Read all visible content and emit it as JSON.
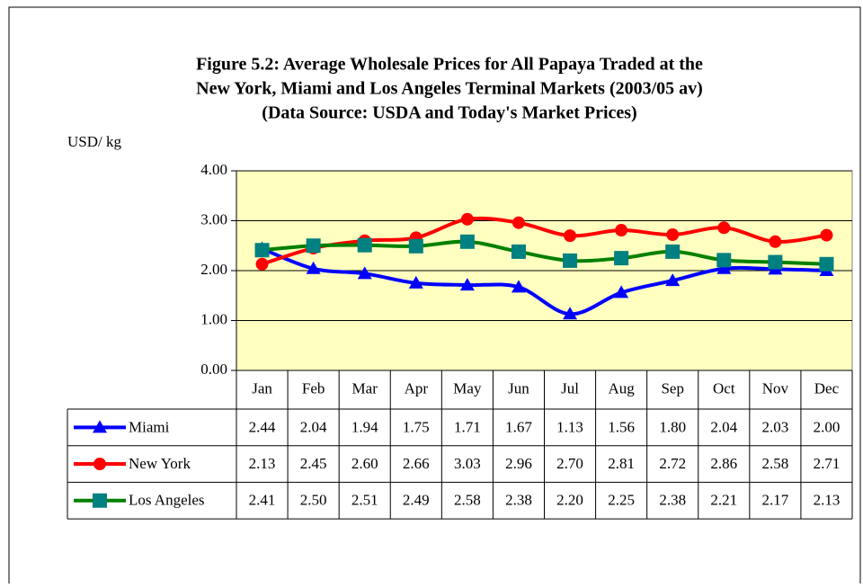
{
  "chart_data": {
    "type": "line",
    "title": [
      "Figure 5.2: Average Wholesale Prices for All Papaya Traded at the",
      "New York, Miami and Los Angeles Terminal Markets (2003/05 av)",
      "(Data Source: USDA and Today's Market Prices)"
    ],
    "y_label": "USD/ kg",
    "categories": [
      "Jan",
      "Feb",
      "Mar",
      "Apr",
      "May",
      "Jun",
      "Jul",
      "Aug",
      "Sep",
      "Oct",
      "Nov",
      "Dec"
    ],
    "series": [
      {
        "name": "Miami",
        "color": "#0000ff",
        "marker": "triangle",
        "values": [
          2.44,
          2.04,
          1.94,
          1.75,
          1.71,
          1.67,
          1.13,
          1.56,
          1.8,
          2.04,
          2.03,
          2.0
        ],
        "value_labels": [
          "2.44",
          "2.04",
          "1.94",
          "1.75",
          "1.71",
          "1.67",
          "1.13",
          "1.56",
          "1.80",
          "2.04",
          "2.03",
          "2.00"
        ]
      },
      {
        "name": "New York",
        "color": "#ff0000",
        "marker": "circle",
        "values": [
          2.13,
          2.45,
          2.6,
          2.66,
          3.03,
          2.96,
          2.7,
          2.81,
          2.72,
          2.86,
          2.58,
          2.71
        ],
        "value_labels": [
          "2.13",
          "2.45",
          "2.60",
          "2.66",
          "3.03",
          "2.96",
          "2.70",
          "2.81",
          "2.72",
          "2.86",
          "2.58",
          "2.71"
        ]
      },
      {
        "name": "Los Angeles",
        "color": "#008000",
        "marker_color": "#008080",
        "marker": "square",
        "values": [
          2.41,
          2.5,
          2.51,
          2.49,
          2.58,
          2.38,
          2.2,
          2.25,
          2.38,
          2.21,
          2.17,
          2.13
        ],
        "value_labels": [
          "2.41",
          "2.50",
          "2.51",
          "2.49",
          "2.58",
          "2.38",
          "2.20",
          "2.25",
          "2.38",
          "2.21",
          "2.17",
          "2.13"
        ]
      }
    ],
    "ylim": [
      0,
      4
    ],
    "yticks": [
      {
        "value": 0,
        "label": "0.00"
      },
      {
        "value": 1,
        "label": "1.00"
      },
      {
        "value": 2,
        "label": "2.00"
      },
      {
        "value": 3,
        "label": "3.00"
      },
      {
        "value": 4,
        "label": "4.00"
      }
    ],
    "grid": true,
    "smooth": true,
    "plot_background": "#ffffc0"
  }
}
